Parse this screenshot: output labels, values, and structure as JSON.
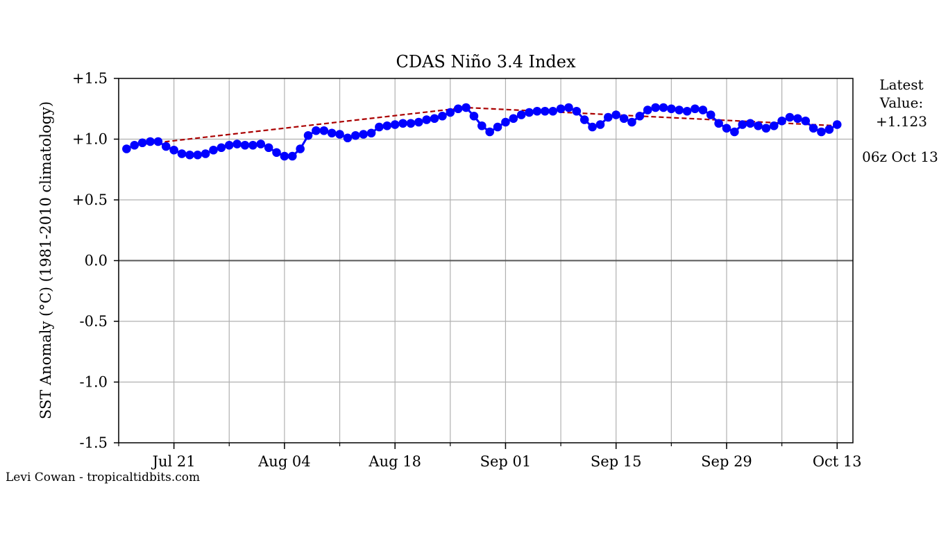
{
  "page": {
    "credit": "Levi Cowan - tropicaltidbits.com"
  },
  "annotation": {
    "latest_line1": "Latest",
    "latest_line2": "Value:",
    "latest_value": "+1.123",
    "timestamp": "06z Oct 13"
  },
  "chart_data": {
    "type": "line",
    "title": "CDAS Niño 3.4 Index",
    "xlabel": "",
    "ylabel": "SST Anomaly (°C) (1981-2010 climatology)",
    "ylim": [
      -1.5,
      1.5
    ],
    "yticks": [
      1.5,
      1.0,
      0.5,
      0.0,
      -0.5,
      -1.0,
      -1.5
    ],
    "ytick_labels": [
      "+1.5",
      "+1.0",
      "+0.5",
      "0.0",
      "-0.5",
      "-1.0",
      "-1.5"
    ],
    "xlim": [
      "2021-07-14",
      "2021-10-15"
    ],
    "xticks": [
      "2021-07-21",
      "2021-08-04",
      "2021-08-18",
      "2021-09-01",
      "2021-09-15",
      "2021-09-29",
      "2021-10-13"
    ],
    "xtick_labels": [
      "Jul 21",
      "Aug 04",
      "Aug 18",
      "Sep 01",
      "Sep 15",
      "Sep 29",
      "Oct 13"
    ],
    "grid": true,
    "zero_line": true,
    "colors": {
      "series": "#0000ff",
      "trend": "#aa0000",
      "grid": "#b0b0b0",
      "zero": "#555555"
    },
    "series": [
      {
        "x_start": "2021-07-15",
        "x_step_days": 1,
        "marker": "circle",
        "values": [
          0.92,
          0.95,
          0.97,
          0.98,
          0.98,
          0.94,
          0.91,
          0.88,
          0.87,
          0.87,
          0.88,
          0.91,
          0.93,
          0.95,
          0.96,
          0.95,
          0.95,
          0.96,
          0.93,
          0.89,
          0.86,
          0.86,
          0.92,
          1.03,
          1.07,
          1.07,
          1.05,
          1.04,
          1.01,
          1.03,
          1.04,
          1.05,
          1.1,
          1.11,
          1.12,
          1.13,
          1.13,
          1.14,
          1.16,
          1.17,
          1.19,
          1.22,
          1.25,
          1.26,
          1.19,
          1.11,
          1.06,
          1.1,
          1.14,
          1.17,
          1.2,
          1.22,
          1.23,
          1.23,
          1.23,
          1.25,
          1.26,
          1.23,
          1.16,
          1.1,
          1.12,
          1.18,
          1.2,
          1.17,
          1.14,
          1.19,
          1.24,
          1.26,
          1.26,
          1.25,
          1.24,
          1.23,
          1.25,
          1.24,
          1.2,
          1.13,
          1.09,
          1.06,
          1.12,
          1.13,
          1.11,
          1.09,
          1.11,
          1.15,
          1.18,
          1.17,
          1.15,
          1.09,
          1.06,
          1.08,
          1.12
        ]
      },
      {
        "style": "dashed",
        "x": [
          "2021-07-16",
          "2021-08-27",
          "2021-10-13"
        ],
        "values": [
          0.95,
          1.26,
          1.11
        ]
      }
    ]
  }
}
